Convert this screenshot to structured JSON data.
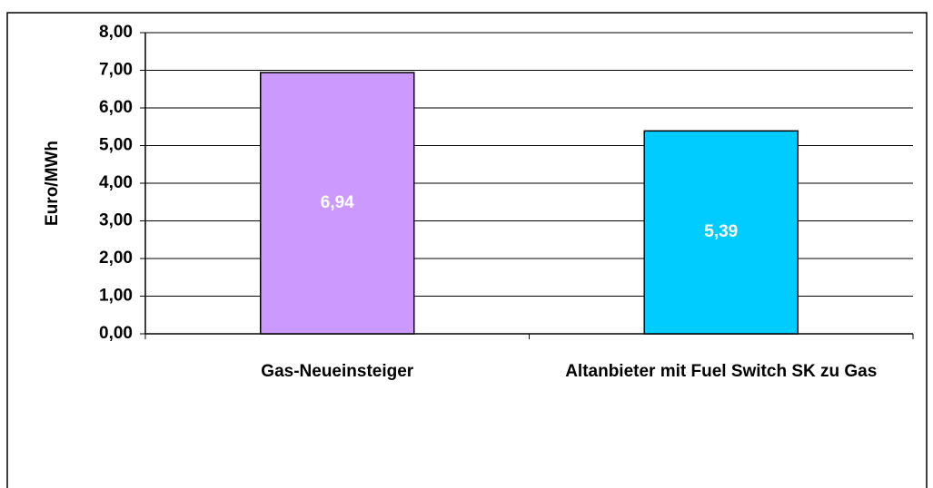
{
  "chart_data": {
    "type": "bar",
    "y_label": "Euro/MWh",
    "categories": [
      "Gas-Neueinsteiger",
      "Altanbieter mit Fuel Switch SK zu Gas"
    ],
    "values": [
      6.94,
      5.39
    ],
    "value_labels": [
      "6,94",
      "5,39"
    ],
    "colors": [
      "#cc99ff",
      "#00ccff"
    ],
    "ylim": [
      0,
      8
    ],
    "yticks": [
      {
        "value": 0,
        "label": "0,00"
      },
      {
        "value": 1,
        "label": "1,00"
      },
      {
        "value": 2,
        "label": "2,00"
      },
      {
        "value": 3,
        "label": "3,00"
      },
      {
        "value": 4,
        "label": "4,00"
      },
      {
        "value": 5,
        "label": "5,00"
      },
      {
        "value": 6,
        "label": "6,00"
      },
      {
        "value": 7,
        "label": "7,00"
      },
      {
        "value": 8,
        "label": "8,00"
      }
    ],
    "grid": true
  }
}
